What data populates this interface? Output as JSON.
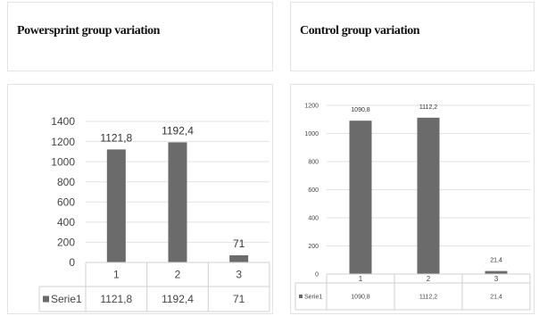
{
  "panels": [
    {
      "title": "Powersprint group variation"
    },
    {
      "title": "Control group variation"
    }
  ],
  "chart_data": [
    {
      "type": "bar",
      "categories": [
        "1",
        "2",
        "3"
      ],
      "series": [
        {
          "name": "Serie1",
          "values": [
            1121.8,
            1192.4,
            71
          ]
        }
      ],
      "data_labels": [
        "1121,8",
        "1192,4",
        "71"
      ],
      "table_values": [
        "1121,8",
        "1192,4",
        "71"
      ],
      "y_ticks": [
        "0",
        "200",
        "400",
        "600",
        "800",
        "1000",
        "1200",
        "1400"
      ],
      "ylim": [
        0,
        1400
      ],
      "grid": true,
      "legend": "data-table",
      "bar_color": "#6b6b6b"
    },
    {
      "type": "bar",
      "categories": [
        "1",
        "2",
        "3"
      ],
      "series": [
        {
          "name": "Serie1",
          "values": [
            1090.8,
            1112.2,
            21.4
          ]
        }
      ],
      "data_labels": [
        "1090,8",
        "1112,2",
        "21,4"
      ],
      "table_values": [
        "1090,8",
        "1112,2",
        "21,4"
      ],
      "y_ticks": [
        "0",
        "200",
        "400",
        "600",
        "800",
        "1000",
        "1200"
      ],
      "ylim": [
        0,
        1200
      ],
      "grid": true,
      "legend": "data-table",
      "bar_color": "#6b6b6b"
    }
  ]
}
